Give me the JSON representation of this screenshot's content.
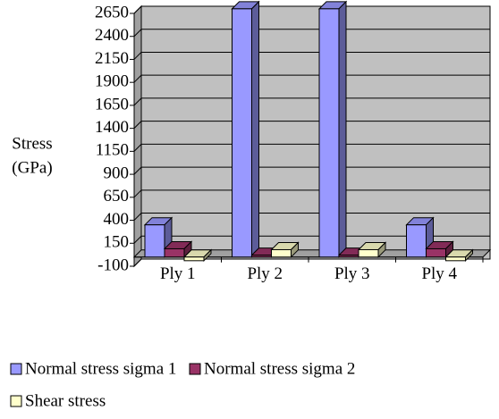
{
  "chart_data": {
    "type": "bar3d",
    "ylabel": [
      "Stress",
      "(GPa)"
    ],
    "categories": [
      "Ply 1",
      "Ply 2",
      "Ply 3",
      "Ply 4"
    ],
    "series": [
      {
        "name": "Normal stress sigma 1",
        "color": "#9999ff",
        "values": [
          350,
          2700,
          2700,
          350
        ]
      },
      {
        "name": "Normal stress sigma 2",
        "color": "#993366",
        "values": [
          90,
          20,
          20,
          90
        ]
      },
      {
        "name": "Shear stress",
        "color": "#ffffcc",
        "values": [
          -40,
          80,
          80,
          -40
        ]
      }
    ],
    "ylim": [
      -100,
      2650
    ],
    "yticks": [
      -100,
      150,
      400,
      650,
      900,
      1150,
      1400,
      1650,
      1900,
      2150,
      2400,
      2650
    ],
    "grid": true,
    "legend": "bottom"
  }
}
